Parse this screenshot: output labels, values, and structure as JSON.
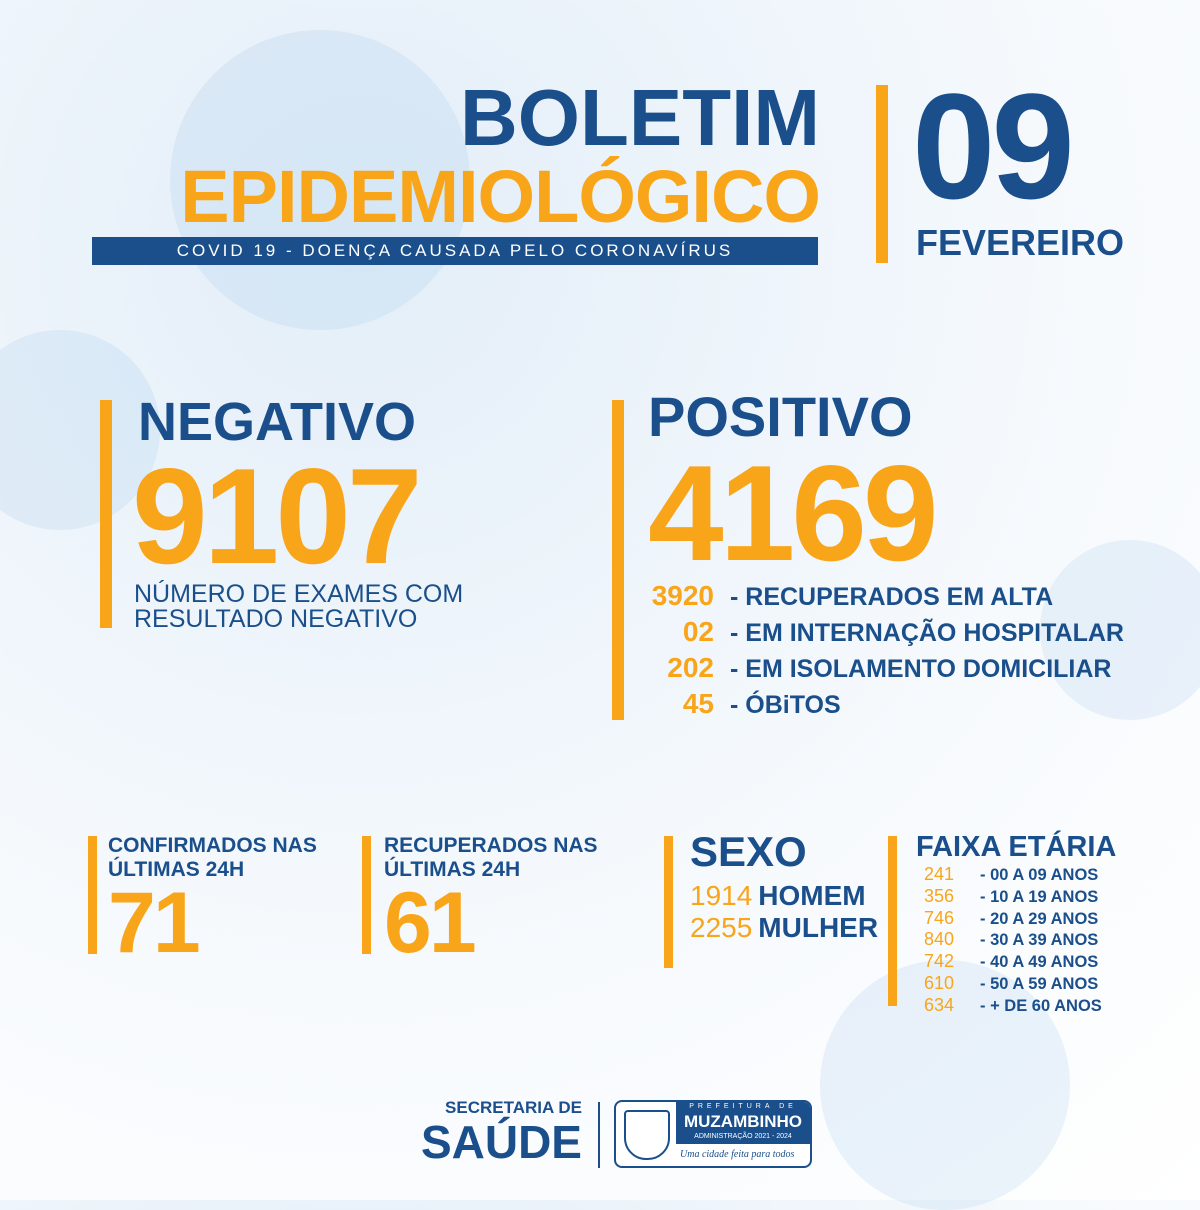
{
  "header": {
    "title1": "BOLETIM",
    "title2": "EPIDEMIOLÓGICO",
    "subtitle": "COVID 19 - DOENÇA CAUSADA PELO CORONAVÍRUS",
    "day": "09",
    "month": "FEVEREIRO"
  },
  "negativo": {
    "label": "NEGATIVO",
    "value": "9107",
    "desc1": "NÚMERO DE EXAMES COM",
    "desc2": "RESULTADO NEGATIVO"
  },
  "positivo": {
    "label": "POSITIVO",
    "value": "4169",
    "items": [
      {
        "n": "3920",
        "t": "- RECUPERADOS EM ALTA"
      },
      {
        "n": "02",
        "t": "- EM INTERNAÇÃO HOSPITALAR"
      },
      {
        "n": "202",
        "t": "- EM ISOLAMENTO DOMICILIAR"
      },
      {
        "n": "45",
        "t": "- ÓBiTOS"
      }
    ]
  },
  "confirmados": {
    "label1": "CONFIRMADOS NAS",
    "label2": "ÚLTIMAS 24H",
    "value": "71"
  },
  "recuperados": {
    "label1": "RECUPERADOS NAS",
    "label2": "ÚLTIMAS 24H",
    "value": "61"
  },
  "sexo": {
    "label": "SEXO",
    "items": [
      {
        "n": "1914",
        "t": "HOMEM"
      },
      {
        "n": "2255",
        "t": "MULHER"
      }
    ]
  },
  "faixa": {
    "label": "FAIXA ETÁRIA",
    "items": [
      {
        "n": "241",
        "t": "- 00 A 09 ANOS"
      },
      {
        "n": "356",
        "t": "- 10 A 19 ANOS"
      },
      {
        "n": "746",
        "t": "- 20 A 29 ANOS"
      },
      {
        "n": "840",
        "t": "- 30 A 39 ANOS"
      },
      {
        "n": "742",
        "t": "- 40 A 49 ANOS"
      },
      {
        "n": "610",
        "t": "- 50 A 59 ANOS"
      },
      {
        "n": "634",
        "t": "- + DE 60 ANOS"
      }
    ]
  },
  "footer": {
    "sec1": "SECRETARIA DE",
    "sec2": "SAÚDE",
    "pref": "PREFEITURA DE",
    "city": "MUZAMBINHO",
    "admin": "ADMINISTRAÇÃO 2021 - 2024",
    "slogan": "Uma cidade feita para todos"
  },
  "colors": {
    "blue": "#1a4f8b",
    "orange": "#f9a51a"
  }
}
